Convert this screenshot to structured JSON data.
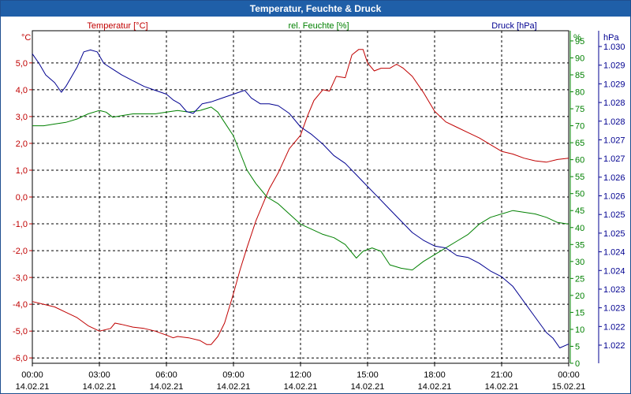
{
  "window": {
    "title": "Temperatur, Feuchte & Druck"
  },
  "chart_data": {
    "type": "line",
    "title": "Temperatur, Feuchte & Druck",
    "colors": {
      "temp": "#c00000",
      "hum": "#008000",
      "press": "#000090",
      "grid": "#000000"
    },
    "x_labels": [
      {
        "t": 0,
        "time": "00:00",
        "date": "14.02.21"
      },
      {
        "t": 3,
        "time": "03:00",
        "date": "14.02.21"
      },
      {
        "t": 6,
        "time": "06:00",
        "date": "14.02.21"
      },
      {
        "t": 9,
        "time": "09:00",
        "date": "14.02.21"
      },
      {
        "t": 12,
        "time": "12:00",
        "date": "14.02.21"
      },
      {
        "t": 15,
        "time": "15:00",
        "date": "14.02.21"
      },
      {
        "t": 18,
        "time": "18:00",
        "date": "14.02.21"
      },
      {
        "t": 21,
        "time": "21:00",
        "date": "14.02.21"
      },
      {
        "t": 24,
        "time": "00:00",
        "date": "15.02.21"
      }
    ],
    "xlim": [
      0,
      24
    ],
    "axes": {
      "temp": {
        "label": "Temperatur [°C]",
        "unit": "°C",
        "range": [
          -6.2,
          6.2
        ],
        "ticks": [
          5,
          4,
          3,
          2,
          1,
          0,
          -1,
          -2,
          -3,
          -4,
          -5,
          -6
        ],
        "tick_labels": [
          "5,0",
          "4,0",
          "3,0",
          "2,0",
          "1,0",
          "0,0",
          "-1,0",
          "-2,0",
          "-3,0",
          "-4,0",
          "-5,0",
          "-6,0"
        ]
      },
      "hum": {
        "label": "rel. Feuchte [%]",
        "unit": "%",
        "range": [
          0,
          98
        ],
        "ticks": [
          95,
          90,
          85,
          80,
          75,
          70,
          65,
          60,
          55,
          50,
          45,
          40,
          35,
          30,
          25,
          20,
          15,
          10,
          5,
          0
        ],
        "tick_labels": [
          "95",
          "90",
          "85",
          "80",
          "75",
          "70",
          "65",
          "60",
          "55",
          "50",
          "45",
          "40",
          "35",
          "30",
          "25",
          "20",
          "15",
          "10",
          "5",
          "0"
        ]
      },
      "press": {
        "label": "Druck [hPa]",
        "unit": "hPa",
        "range": [
          1021.6,
          1030.25
        ],
        "tick_labels": [
          "1.030",
          "1.029",
          "1.029",
          "1.028",
          "1.028",
          "1.027",
          "1.027",
          "1.026",
          "1.026",
          "1.025",
          "1.025",
          "1.024",
          "1.024",
          "1.023",
          "1.023",
          "1.022",
          "1.022"
        ]
      }
    },
    "series": [
      {
        "name": "Temperatur",
        "axis": "temp",
        "color": "#c00000",
        "points": [
          [
            0,
            -3.9
          ],
          [
            0.5,
            -4.0
          ],
          [
            1,
            -4.1
          ],
          [
            1.5,
            -4.3
          ],
          [
            2,
            -4.5
          ],
          [
            2.5,
            -4.8
          ],
          [
            3,
            -5.0
          ],
          [
            3.5,
            -4.9
          ],
          [
            3.7,
            -4.7
          ],
          [
            4,
            -4.75
          ],
          [
            4.5,
            -4.85
          ],
          [
            5,
            -4.9
          ],
          [
            5.5,
            -5.0
          ],
          [
            6,
            -5.15
          ],
          [
            6.3,
            -5.25
          ],
          [
            6.5,
            -5.2
          ],
          [
            7,
            -5.25
          ],
          [
            7.5,
            -5.35
          ],
          [
            7.8,
            -5.5
          ],
          [
            8,
            -5.5
          ],
          [
            8.3,
            -5.2
          ],
          [
            8.6,
            -4.7
          ],
          [
            9,
            -3.6
          ],
          [
            9.3,
            -2.7
          ],
          [
            9.6,
            -1.9
          ],
          [
            10,
            -0.9
          ],
          [
            10.3,
            -0.3
          ],
          [
            10.6,
            0.3
          ],
          [
            11,
            0.9
          ],
          [
            11.5,
            1.8
          ],
          [
            12,
            2.3
          ],
          [
            12.3,
            3.0
          ],
          [
            12.6,
            3.6
          ],
          [
            13,
            4.0
          ],
          [
            13.3,
            3.95
          ],
          [
            13.6,
            4.5
          ],
          [
            14,
            4.45
          ],
          [
            14.3,
            5.3
          ],
          [
            14.6,
            5.5
          ],
          [
            14.8,
            5.5
          ],
          [
            15,
            5.0
          ],
          [
            15.3,
            4.7
          ],
          [
            15.6,
            4.8
          ],
          [
            16,
            4.8
          ],
          [
            16.3,
            4.95
          ],
          [
            16.6,
            4.8
          ],
          [
            17,
            4.5
          ],
          [
            17.5,
            3.9
          ],
          [
            18,
            3.2
          ],
          [
            18.5,
            2.8
          ],
          [
            19,
            2.6
          ],
          [
            19.5,
            2.4
          ],
          [
            20,
            2.2
          ],
          [
            20.5,
            1.95
          ],
          [
            21,
            1.7
          ],
          [
            21.5,
            1.6
          ],
          [
            22,
            1.45
          ],
          [
            22.5,
            1.35
          ],
          [
            23,
            1.3
          ],
          [
            23.5,
            1.4
          ],
          [
            24,
            1.45
          ]
        ]
      },
      {
        "name": "rel. Feuchte",
        "axis": "hum",
        "color": "#008000",
        "points": [
          [
            0,
            70
          ],
          [
            0.5,
            70
          ],
          [
            1,
            70.5
          ],
          [
            1.5,
            71
          ],
          [
            2,
            72
          ],
          [
            2.5,
            73.5
          ],
          [
            3,
            74.5
          ],
          [
            3.3,
            74
          ],
          [
            3.6,
            72.5
          ],
          [
            4,
            73
          ],
          [
            4.5,
            73.5
          ],
          [
            5,
            73.5
          ],
          [
            5.5,
            73.5
          ],
          [
            6,
            74
          ],
          [
            6.5,
            74.5
          ],
          [
            7,
            74
          ],
          [
            7.5,
            74.5
          ],
          [
            8,
            75.5
          ],
          [
            8.3,
            74
          ],
          [
            8.6,
            71
          ],
          [
            9,
            67
          ],
          [
            9.3,
            62
          ],
          [
            9.6,
            57
          ],
          [
            10,
            53
          ],
          [
            10.5,
            49
          ],
          [
            11,
            47
          ],
          [
            11.5,
            44
          ],
          [
            12,
            41
          ],
          [
            12.5,
            39.5
          ],
          [
            13,
            38
          ],
          [
            13.5,
            37
          ],
          [
            14,
            35
          ],
          [
            14.5,
            31
          ],
          [
            14.8,
            33
          ],
          [
            15.2,
            34
          ],
          [
            15.6,
            33
          ],
          [
            16,
            29
          ],
          [
            16.5,
            28
          ],
          [
            17,
            27.5
          ],
          [
            17.5,
            30
          ],
          [
            18,
            32
          ],
          [
            18.5,
            34
          ],
          [
            19,
            36
          ],
          [
            19.5,
            38
          ],
          [
            20,
            41
          ],
          [
            20.5,
            43
          ],
          [
            21,
            44
          ],
          [
            21.5,
            45
          ],
          [
            22,
            44.5
          ],
          [
            22.5,
            44
          ],
          [
            23,
            43
          ],
          [
            23.5,
            41.5
          ],
          [
            24,
            41
          ]
        ]
      },
      {
        "name": "Druck",
        "axis": "press",
        "color": "#000090",
        "points": [
          [
            0,
            1029.65
          ],
          [
            0.3,
            1029.4
          ],
          [
            0.6,
            1029.1
          ],
          [
            1,
            1028.9
          ],
          [
            1.3,
            1028.65
          ],
          [
            1.5,
            1028.8
          ],
          [
            1.8,
            1029.1
          ],
          [
            2,
            1029.3
          ],
          [
            2.3,
            1029.7
          ],
          [
            2.6,
            1029.75
          ],
          [
            2.9,
            1029.7
          ],
          [
            3.2,
            1029.4
          ],
          [
            3.6,
            1029.25
          ],
          [
            4,
            1029.1
          ],
          [
            4.5,
            1028.95
          ],
          [
            5,
            1028.8
          ],
          [
            5.5,
            1028.7
          ],
          [
            6,
            1028.6
          ],
          [
            6.3,
            1028.45
          ],
          [
            6.6,
            1028.35
          ],
          [
            6.9,
            1028.15
          ],
          [
            7.2,
            1028.1
          ],
          [
            7.6,
            1028.35
          ],
          [
            8,
            1028.4
          ],
          [
            8.5,
            1028.5
          ],
          [
            9,
            1028.6
          ],
          [
            9.5,
            1028.7
          ],
          [
            9.8,
            1028.5
          ],
          [
            10.2,
            1028.35
          ],
          [
            10.6,
            1028.35
          ],
          [
            11,
            1028.3
          ],
          [
            11.5,
            1028.1
          ],
          [
            12,
            1027.75
          ],
          [
            12.5,
            1027.55
          ],
          [
            13,
            1027.3
          ],
          [
            13.5,
            1027.0
          ],
          [
            14,
            1026.8
          ],
          [
            14.5,
            1026.5
          ],
          [
            15,
            1026.2
          ],
          [
            15.5,
            1025.9
          ],
          [
            16,
            1025.6
          ],
          [
            16.5,
            1025.3
          ],
          [
            17,
            1025.0
          ],
          [
            17.5,
            1024.8
          ],
          [
            18,
            1024.65
          ],
          [
            18.5,
            1024.6
          ],
          [
            19,
            1024.4
          ],
          [
            19.5,
            1024.35
          ],
          [
            20,
            1024.2
          ],
          [
            20.5,
            1024.0
          ],
          [
            21,
            1023.85
          ],
          [
            21.5,
            1023.6
          ],
          [
            22,
            1023.2
          ],
          [
            22.5,
            1022.8
          ],
          [
            23,
            1022.4
          ],
          [
            23.3,
            1022.25
          ],
          [
            23.6,
            1022.0
          ],
          [
            24,
            1022.1
          ]
        ]
      }
    ]
  }
}
